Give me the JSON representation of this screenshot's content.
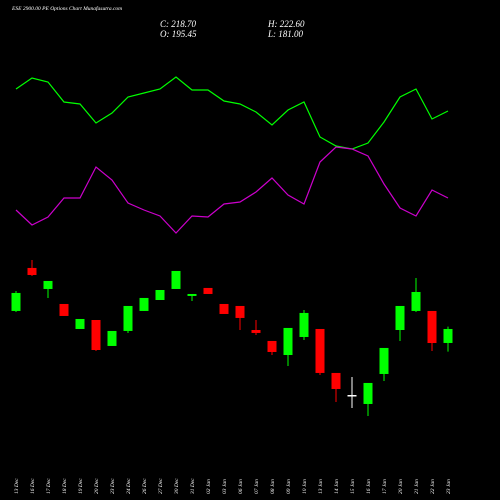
{
  "chart_data": {
    "type": "candlestick",
    "title": "ESE 2900.00 PE Options Chart Munafasutra.com",
    "ohlc_labels": {
      "close": "C: 218.70",
      "high": "H: 222.60",
      "open": "O: 195.45",
      "low": "L: 181.00"
    },
    "categories": [
      "13 Dec",
      "16 Dec",
      "17 Dec",
      "18 Dec",
      "19 Dec",
      "20 Dec",
      "23 Dec",
      "24 Dec",
      "26 Dec",
      "27 Dec",
      "30 Dec",
      "31 Dec",
      "02 Jan",
      "03 Jan",
      "06 Jan",
      "07 Jan",
      "08 Jan",
      "09 Jan",
      "10 Jan",
      "13 Jan",
      "14 Jan",
      "15 Jan",
      "16 Jan",
      "17 Jan",
      "20 Jan",
      "21 Jan",
      "22 Jan",
      "23 Jan"
    ],
    "open": [
      248.6,
      320,
      285.1,
      260.2,
      218.7,
      233.6,
      190.5,
      215.4,
      248.6,
      266.8,
      285.1,
      273.5,
      286.8,
      260.2,
      256.9,
      217,
      198.8,
      175.5,
      205.4,
      218.7,
      145.7,
      109.1,
      94.2,
      144,
      217,
      248.6,
      248.6,
      195.45
    ],
    "high": [
      281.8,
      333.2,
      298.4,
      260.2,
      235.3,
      233.6,
      215.4,
      256.9,
      270.2,
      283.4,
      315,
      276.8,
      286.8,
      260.2,
      256.9,
      233.6,
      198.8,
      220.4,
      250.2,
      218.7,
      145.7,
      139,
      129.1,
      187.2,
      256.9,
      303.4,
      248.6,
      222.6
    ],
    "low": [
      246.9,
      306.7,
      270.2,
      240.3,
      218.7,
      182.2,
      190.5,
      212.1,
      248.6,
      266.8,
      285.1,
      265.2,
      276.8,
      243.6,
      217,
      208.7,
      175.5,
      157.3,
      200.4,
      142.3,
      97.5,
      87.5,
      74.3,
      132.4,
      198.8,
      246.9,
      182.2,
      181
    ],
    "close": [
      278.5,
      308.3,
      298.4,
      240.3,
      235.3,
      183.8,
      215.4,
      256.9,
      270.2,
      283.4,
      315,
      276.8,
      276.8,
      243.6,
      237,
      212.1,
      180.5,
      220.4,
      245.3,
      145.7,
      119.1,
      109.1,
      129.1,
      187.2,
      256.9,
      280.1,
      195.4,
      218.7
    ],
    "ylim": [
      -65.2,
      764.8
    ],
    "up_color": "#00ff00",
    "down_color": "#ff0000",
    "flat_color": "#ffffff",
    "lines": [
      {
        "color": "#00ff00",
        "values": [
          211,
          222,
          218,
          198,
          196,
          177,
          187,
          203,
          207,
          211,
          223,
          210,
          210,
          199,
          196,
          188,
          175,
          190,
          198,
          163,
          154,
          151,
          157,
          178,
          203,
          211,
          181,
          189
        ]
      },
      {
        "color": "#cc00cc",
        "values": [
          90,
          75,
          83,
          102,
          102,
          133,
          120,
          97,
          90,
          84,
          67,
          84,
          83,
          96,
          98,
          108,
          122,
          105,
          96,
          138,
          153,
          151,
          144,
          116,
          92,
          84,
          110,
          102
        ]
      }
    ],
    "lines_ylim": [
      0,
      300
    ]
  }
}
